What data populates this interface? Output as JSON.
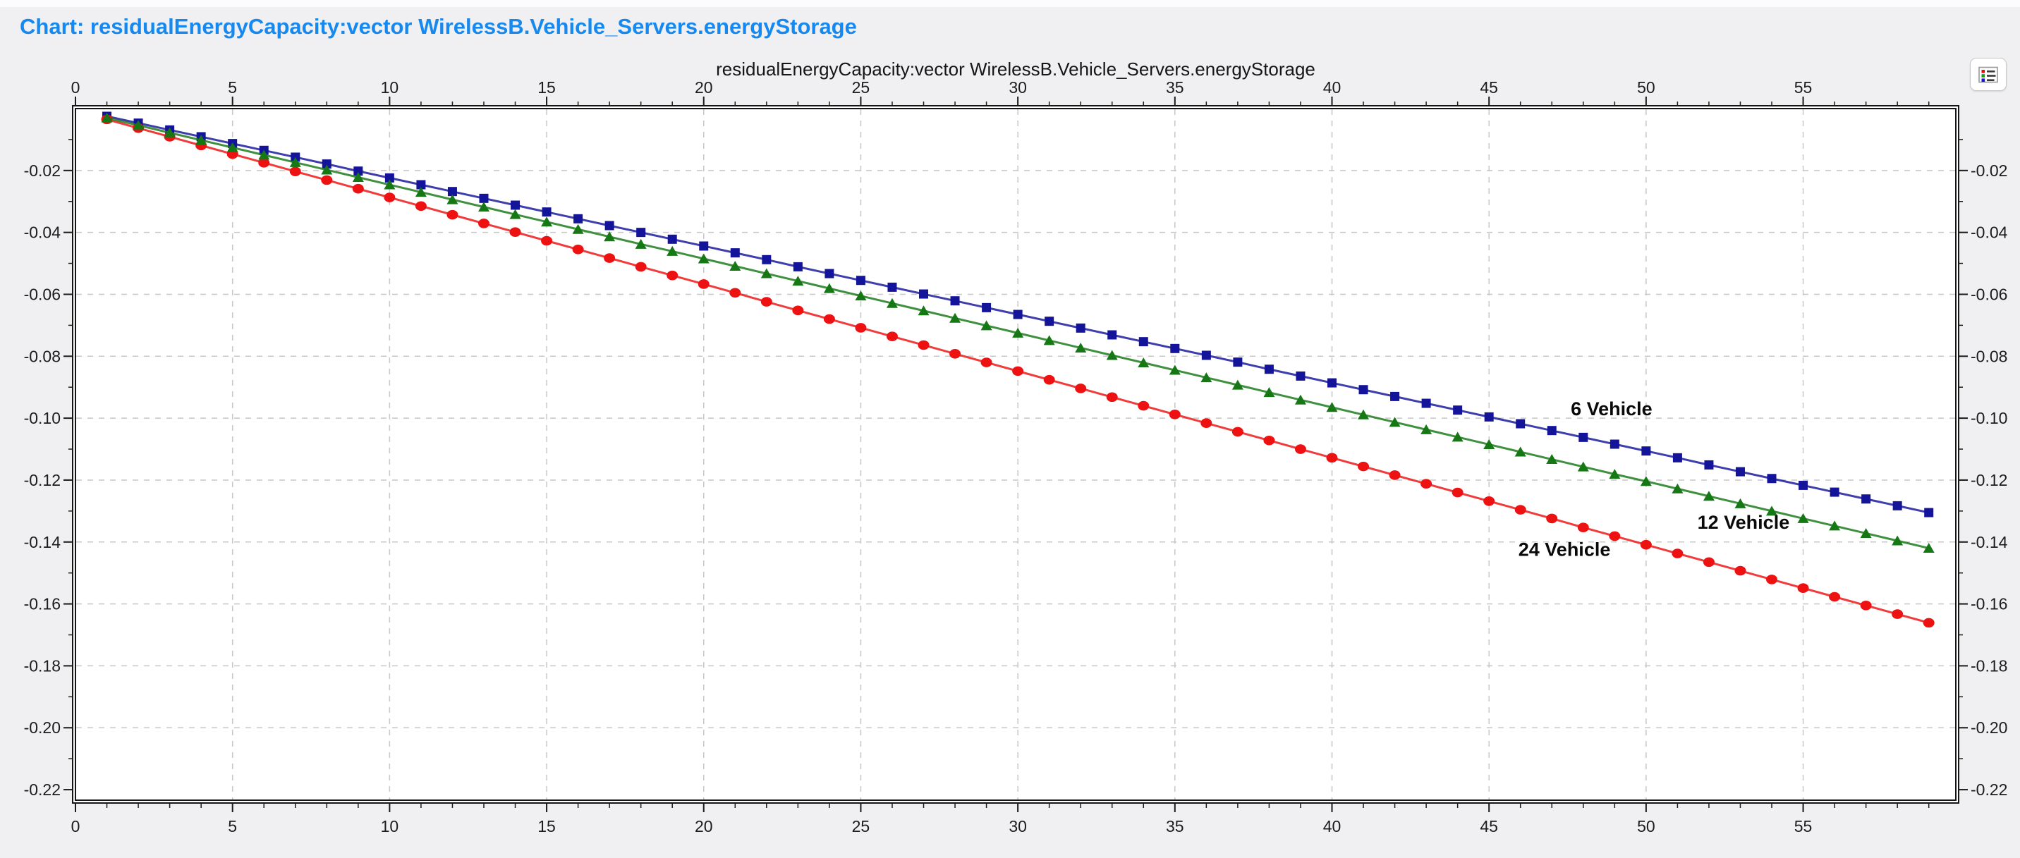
{
  "page": {
    "title": "Chart: residualEnergyCapacity:vector WirelessB.Vehicle_Servers.energyStorage",
    "title_color": "#1689F0",
    "background_color": "#F0EFF1"
  },
  "toolbar": {
    "legend_icon_bullet_colors": [
      "#E01010",
      "#10A010",
      "#1515E0"
    ]
  },
  "chart_data": {
    "type": "line",
    "title": "residualEnergyCapacity:vector WirelessB.Vehicle_Servers.energyStorage",
    "xlabel": "",
    "ylabel": "",
    "xlim": [
      0,
      59.86
    ],
    "ylim": [
      -0.2234,
      0
    ],
    "grid": "dashed",
    "grid_color": "#C7C7C7",
    "plot_background": "#FFFFFF",
    "axis_text_color": "#1C1C1C",
    "x_ticks": [
      0,
      5,
      10,
      15,
      20,
      25,
      30,
      35,
      40,
      45,
      50,
      55
    ],
    "x_minor_step": 1,
    "y_ticks": [
      -0.02,
      -0.04,
      -0.06,
      -0.08,
      -0.1,
      -0.12,
      -0.14,
      -0.16,
      -0.18,
      -0.2,
      -0.22
    ],
    "y_tick_labels": [
      "-0.02",
      "-0.04",
      "-0.06",
      "-0.08",
      "-0.10",
      "-0.12",
      "-0.14",
      "-0.16",
      "-0.18",
      "-0.20",
      "-0.22"
    ],
    "y_minor_step": 0.01,
    "legend_position": "inline-labels",
    "x": [
      1,
      2,
      3,
      4,
      5,
      6,
      7,
      8,
      9,
      10,
      11,
      12,
      13,
      14,
      15,
      16,
      17,
      18,
      19,
      20,
      21,
      22,
      23,
      24,
      25,
      26,
      27,
      28,
      29,
      30,
      31,
      32,
      33,
      34,
      35,
      36,
      37,
      38,
      39,
      40,
      41,
      42,
      43,
      44,
      45,
      46,
      47,
      48,
      49,
      50,
      51,
      52,
      53,
      54,
      55,
      56,
      57,
      58,
      59
    ],
    "series": [
      {
        "name": "6 Vehicle",
        "color": "#14149B",
        "marker": "square",
        "label_anchor": {
          "x": 48.9,
          "y": -0.097
        },
        "y": [
          -0.0025,
          -0.0047,
          -0.0069,
          -0.0091,
          -0.0113,
          -0.0135,
          -0.0157,
          -0.0179,
          -0.0202,
          -0.0224,
          -0.0246,
          -0.0268,
          -0.029,
          -0.0312,
          -0.0334,
          -0.0356,
          -0.0378,
          -0.04,
          -0.0422,
          -0.0444,
          -0.0466,
          -0.0488,
          -0.0511,
          -0.0533,
          -0.0555,
          -0.0577,
          -0.0599,
          -0.0621,
          -0.0643,
          -0.0665,
          -0.0687,
          -0.0709,
          -0.0731,
          -0.0753,
          -0.0775,
          -0.0797,
          -0.0819,
          -0.0842,
          -0.0864,
          -0.0886,
          -0.0908,
          -0.093,
          -0.0952,
          -0.0974,
          -0.0996,
          -0.1018,
          -0.104,
          -0.1062,
          -0.1084,
          -0.1106,
          -0.1128,
          -0.1151,
          -0.1173,
          -0.1195,
          -0.1217,
          -0.1239,
          -0.1261,
          -0.1283,
          -0.1305
        ]
      },
      {
        "name": "24 Vehicle",
        "color": "#EE1111",
        "marker": "circle",
        "label_anchor": {
          "x": 47.4,
          "y": -0.1425
        },
        "y": [
          -0.0035,
          -0.0063,
          -0.0091,
          -0.0119,
          -0.0147,
          -0.0175,
          -0.0203,
          -0.0231,
          -0.0259,
          -0.0287,
          -0.0315,
          -0.0343,
          -0.0371,
          -0.0399,
          -0.0427,
          -0.0455,
          -0.0483,
          -0.0511,
          -0.0539,
          -0.0567,
          -0.0595,
          -0.0624,
          -0.0652,
          -0.068,
          -0.0708,
          -0.0736,
          -0.0764,
          -0.0792,
          -0.082,
          -0.0848,
          -0.0876,
          -0.0904,
          -0.0932,
          -0.096,
          -0.0988,
          -0.1016,
          -0.1044,
          -0.1072,
          -0.11,
          -0.1128,
          -0.1156,
          -0.1184,
          -0.1212,
          -0.124,
          -0.1268,
          -0.1296,
          -0.1324,
          -0.1353,
          -0.1381,
          -0.1409,
          -0.1437,
          -0.1465,
          -0.1493,
          -0.1521,
          -0.1549,
          -0.1577,
          -0.1605,
          -0.1633,
          -0.1661
        ]
      },
      {
        "name": "12 Vehicle",
        "color": "#157815",
        "marker": "triangle",
        "label_anchor": {
          "x": 53.1,
          "y": -0.1337
        },
        "y": [
          -0.003,
          -0.0054,
          -0.0078,
          -0.0102,
          -0.0126,
          -0.015,
          -0.0174,
          -0.0198,
          -0.0222,
          -0.0246,
          -0.027,
          -0.0294,
          -0.0318,
          -0.0342,
          -0.0366,
          -0.039,
          -0.0414,
          -0.0438,
          -0.0461,
          -0.0485,
          -0.0509,
          -0.0533,
          -0.0557,
          -0.0581,
          -0.0605,
          -0.0629,
          -0.0653,
          -0.0677,
          -0.0701,
          -0.0725,
          -0.0749,
          -0.0773,
          -0.0797,
          -0.0821,
          -0.0845,
          -0.0869,
          -0.0893,
          -0.0917,
          -0.0941,
          -0.0965,
          -0.0989,
          -0.1013,
          -0.1037,
          -0.1061,
          -0.1085,
          -0.1109,
          -0.1133,
          -0.1157,
          -0.1181,
          -0.1204,
          -0.1228,
          -0.1252,
          -0.1276,
          -0.13,
          -0.1324,
          -0.1348,
          -0.1372,
          -0.1396,
          -0.142
        ]
      }
    ]
  }
}
